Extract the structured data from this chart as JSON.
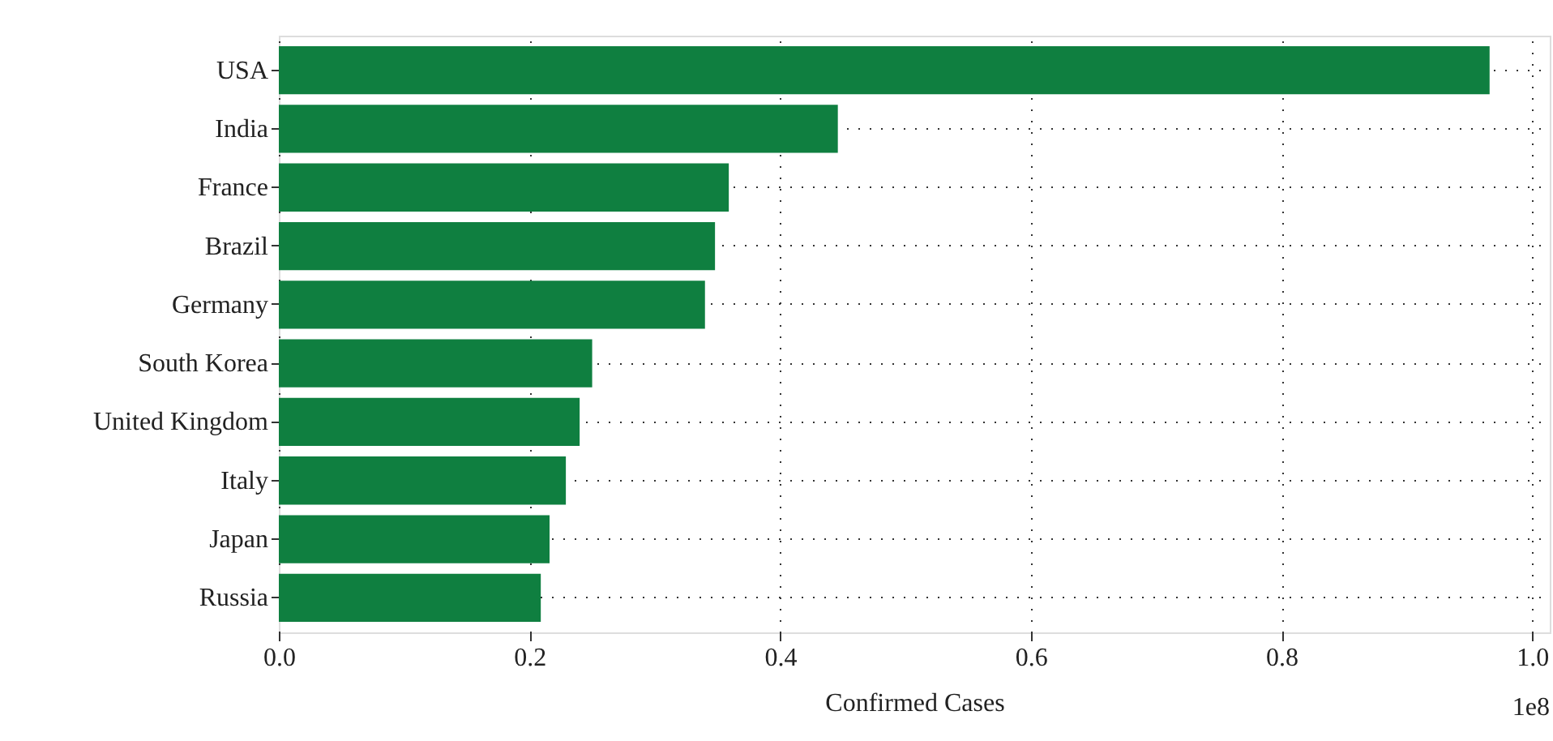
{
  "chart_data": {
    "type": "bar",
    "orientation": "horizontal",
    "categories": [
      "USA",
      "India",
      "France",
      "Brazil",
      "Germany",
      "South Korea",
      "United Kingdom",
      "Italy",
      "Japan",
      "Russia"
    ],
    "values": [
      0.966,
      0.446,
      0.359,
      0.348,
      0.34,
      0.25,
      0.24,
      0.229,
      0.216,
      0.209
    ],
    "color": "#0f7f40",
    "xlabel": "Confirmed Cases",
    "xlim": [
      0,
      1.014
    ],
    "xticks": [
      {
        "value": 0,
        "label": "0.0"
      },
      0.2,
      0.4,
      0.6,
      0.8,
      {
        "value": 1,
        "label": "1.0"
      }
    ],
    "grid": true,
    "annotations": [
      "1e8"
    ]
  }
}
